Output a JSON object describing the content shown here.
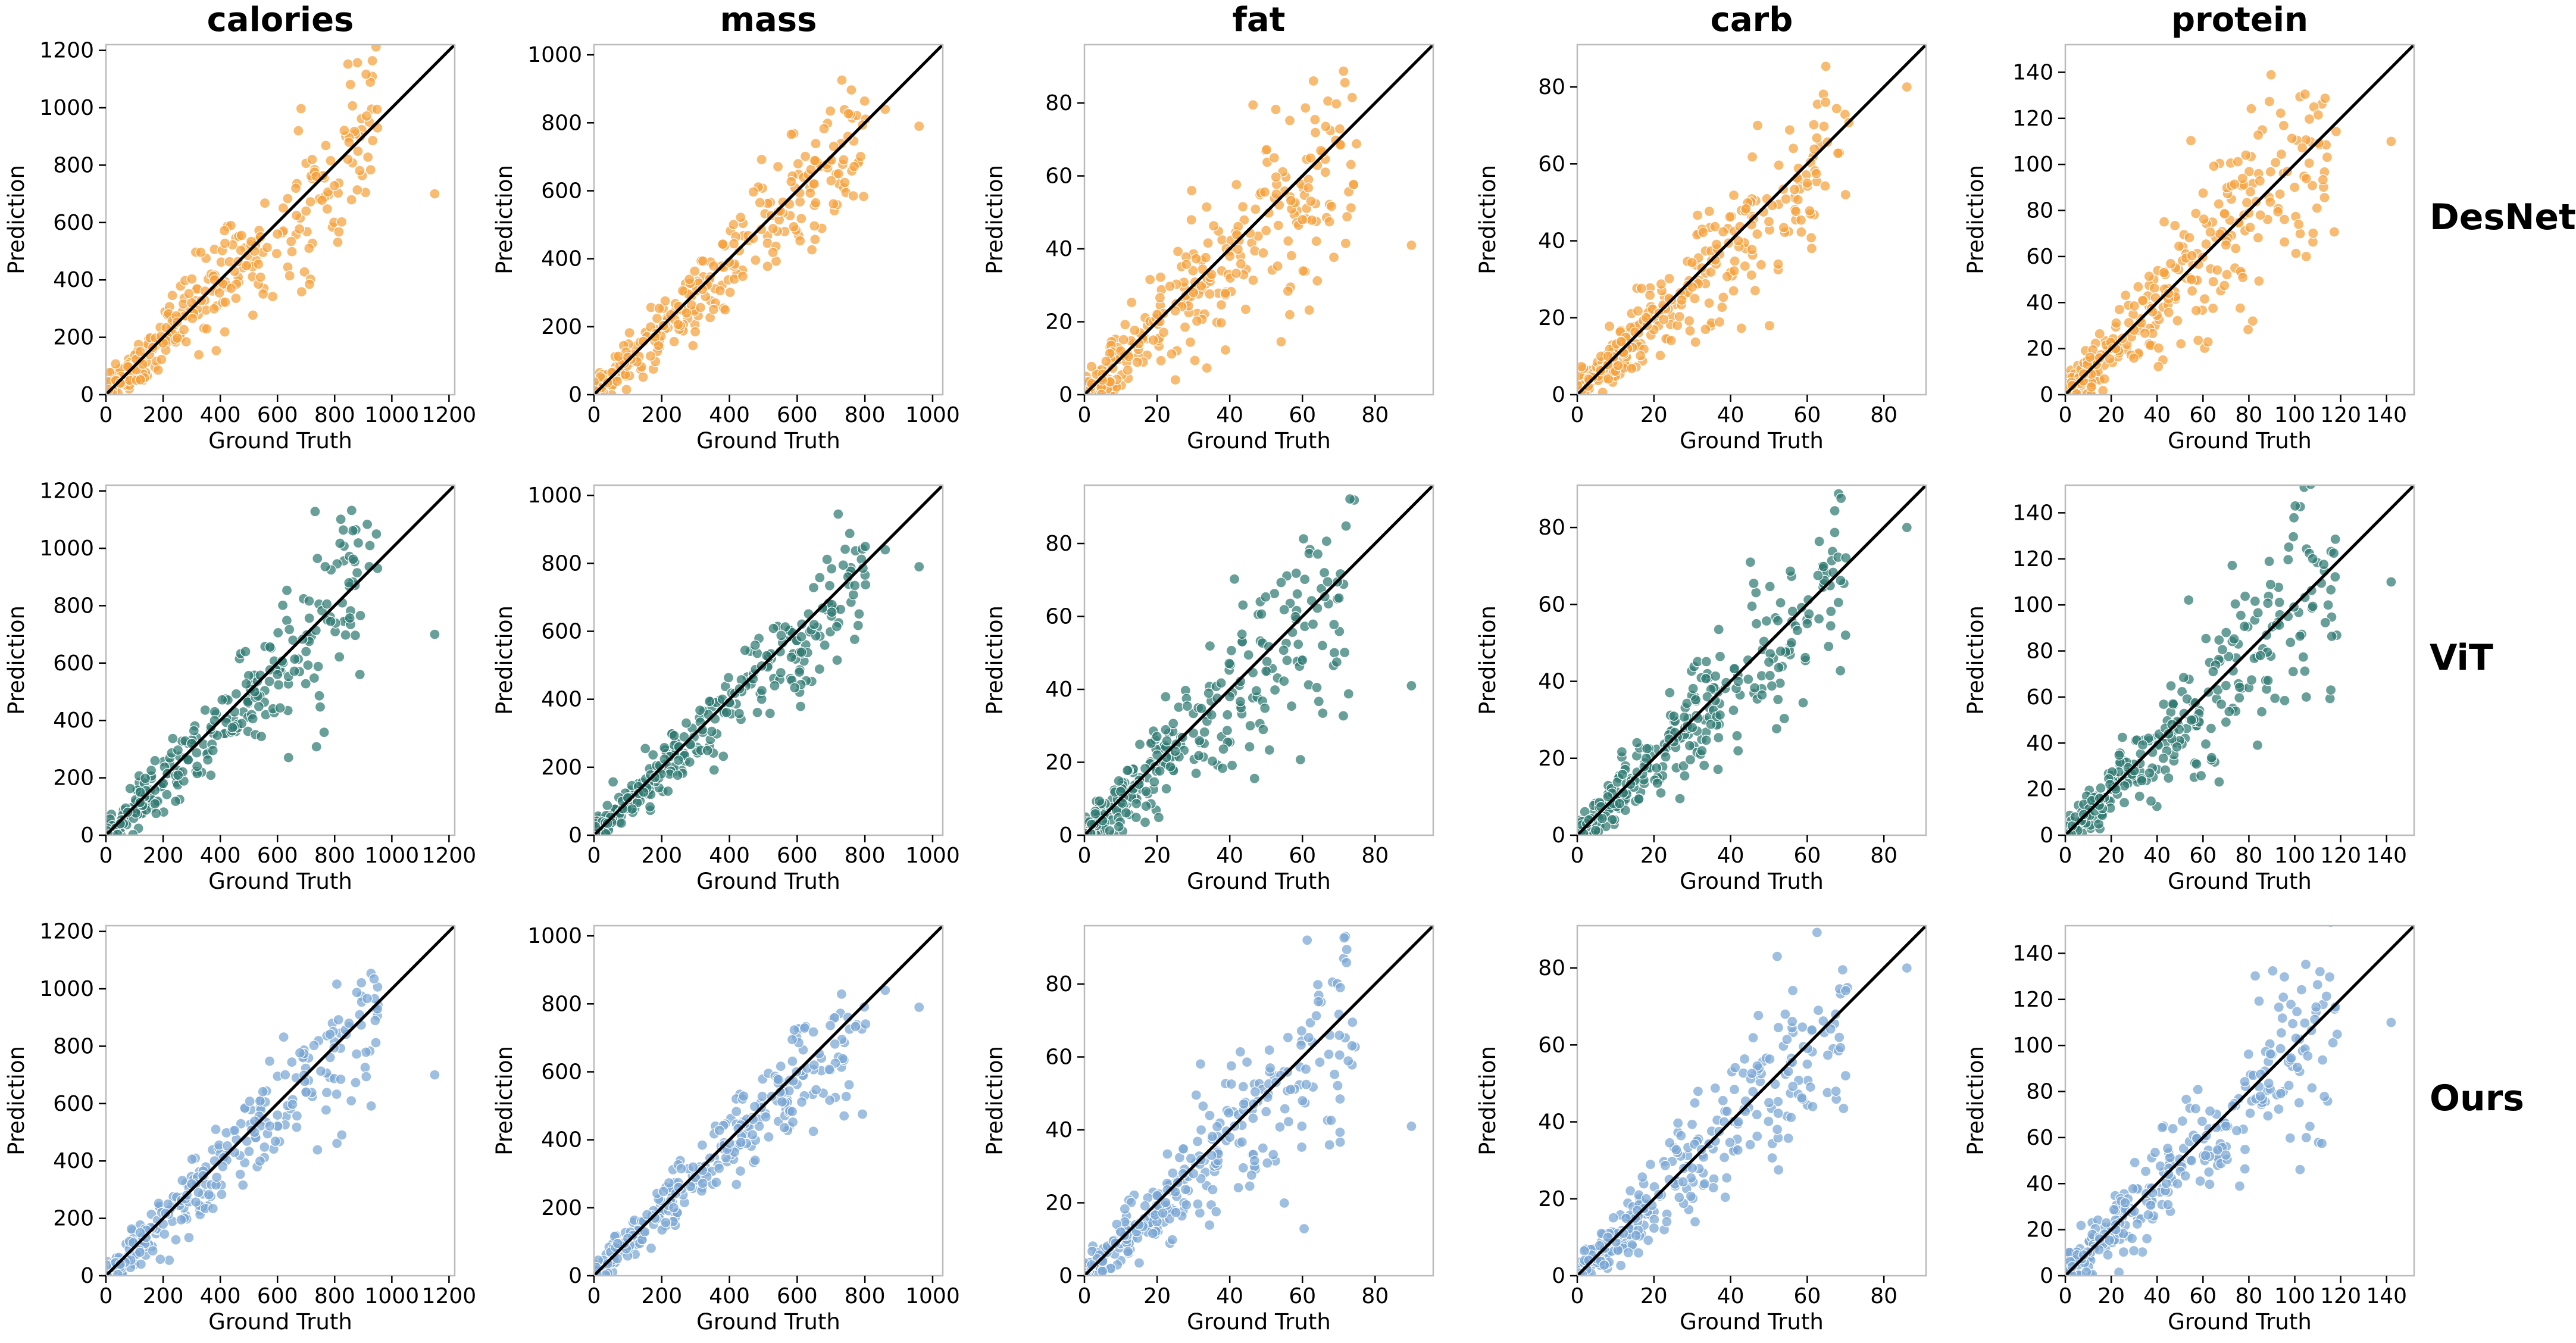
{
  "figure": {
    "columns": [
      "calories",
      "mass",
      "fat",
      "carb",
      "protein"
    ],
    "rows": [
      "DesNet",
      "ViT",
      "Ours"
    ]
  },
  "colors": {
    "DesNet": "#f5a13c",
    "ViT": "#2f7a72",
    "Ours": "#7aa6d4",
    "diagonal": "#000000",
    "frame": "#bbbbbb"
  },
  "chart_data": [
    {
      "type": "scatter",
      "title": "calories",
      "xlabel": "Ground Truth",
      "ylabel": "Prediction",
      "xlim": [
        0,
        1220
      ],
      "ylim": [
        0,
        1220
      ],
      "xticks": [
        "0",
        "200",
        "400",
        "600",
        "800",
        "1000",
        "1200"
      ],
      "yticks": [
        "0",
        "200",
        "400",
        "600",
        "800",
        "1000",
        "1200"
      ],
      "reference_line": "y = x",
      "sample_points": [
        [
          50,
          40
        ],
        [
          120,
          150
        ],
        [
          200,
          180
        ],
        [
          300,
          320
        ],
        [
          380,
          400
        ],
        [
          450,
          430
        ],
        [
          520,
          500
        ],
        [
          600,
          560
        ],
        [
          700,
          640
        ],
        [
          850,
          880
        ],
        [
          950,
          930
        ],
        [
          1150,
          700
        ]
      ],
      "series": [
        {
          "name": "DesNet",
          "spread": 0.16
        },
        {
          "name": "ViT",
          "spread": 0.15
        },
        {
          "name": "Ours",
          "spread": 0.14
        }
      ]
    },
    {
      "type": "scatter",
      "title": "mass",
      "xlabel": "Ground Truth",
      "ylabel": "Prediction",
      "xlim": [
        0,
        1030
      ],
      "ylim": [
        0,
        1030
      ],
      "xticks": [
        "0",
        "200",
        "400",
        "600",
        "800",
        "1000"
      ],
      "yticks": [
        "0",
        "200",
        "400",
        "600",
        "800",
        "1000"
      ],
      "reference_line": "y = x",
      "sample_points": [
        [
          40,
          35
        ],
        [
          100,
          110
        ],
        [
          180,
          170
        ],
        [
          250,
          260
        ],
        [
          320,
          310
        ],
        [
          400,
          390
        ],
        [
          470,
          460
        ],
        [
          550,
          540
        ],
        [
          650,
          620
        ],
        [
          750,
          760
        ],
        [
          860,
          840
        ],
        [
          960,
          790
        ]
      ],
      "series": [
        {
          "name": "DesNet",
          "spread": 0.11
        },
        {
          "name": "ViT",
          "spread": 0.1
        },
        {
          "name": "Ours",
          "spread": 0.09
        }
      ]
    },
    {
      "type": "scatter",
      "title": "fat",
      "xlabel": "Ground Truth",
      "ylabel": "Prediction",
      "xlim": [
        0,
        96
      ],
      "ylim": [
        0,
        96
      ],
      "xticks": [
        "0",
        "20",
        "40",
        "60",
        "80"
      ],
      "yticks": [
        "0",
        "20",
        "40",
        "60",
        "80"
      ],
      "reference_line": "y = x",
      "sample_points": [
        [
          2,
          3
        ],
        [
          5,
          4
        ],
        [
          10,
          12
        ],
        [
          15,
          14
        ],
        [
          20,
          22
        ],
        [
          25,
          23
        ],
        [
          30,
          28
        ],
        [
          35,
          33
        ],
        [
          40,
          38
        ],
        [
          50,
          45
        ],
        [
          60,
          48
        ],
        [
          90,
          41
        ]
      ],
      "series": [
        {
          "name": "DesNet",
          "spread": 0.24
        },
        {
          "name": "ViT",
          "spread": 0.22
        },
        {
          "name": "Ours",
          "spread": 0.2
        }
      ]
    },
    {
      "type": "scatter",
      "title": "carb",
      "xlabel": "Ground Truth",
      "ylabel": "Prediction",
      "xlim": [
        0,
        91
      ],
      "ylim": [
        0,
        91
      ],
      "xticks": [
        "0",
        "20",
        "40",
        "60",
        "80"
      ],
      "yticks": [
        "0",
        "20",
        "40",
        "60",
        "80"
      ],
      "reference_line": "y = x",
      "sample_points": [
        [
          3,
          4
        ],
        [
          8,
          10
        ],
        [
          12,
          11
        ],
        [
          18,
          20
        ],
        [
          24,
          25
        ],
        [
          30,
          28
        ],
        [
          36,
          35
        ],
        [
          42,
          40
        ],
        [
          50,
          45
        ],
        [
          60,
          55
        ],
        [
          70,
          52
        ],
        [
          86,
          80
        ]
      ],
      "series": [
        {
          "name": "DesNet",
          "spread": 0.2
        },
        {
          "name": "ViT",
          "spread": 0.18
        },
        {
          "name": "Ours",
          "spread": 0.17
        }
      ]
    },
    {
      "type": "scatter",
      "title": "protein",
      "xlabel": "Ground Truth",
      "ylabel": "Prediction",
      "xlim": [
        0,
        152
      ],
      "ylim": [
        0,
        152
      ],
      "xticks": [
        "0",
        "20",
        "40",
        "60",
        "80",
        "100",
        "120",
        "140"
      ],
      "yticks": [
        "0",
        "20",
        "40",
        "60",
        "80",
        "100",
        "120",
        "140"
      ],
      "reference_line": "y = x",
      "sample_points": [
        [
          3,
          4
        ],
        [
          8,
          9
        ],
        [
          15,
          16
        ],
        [
          22,
          20
        ],
        [
          30,
          28
        ],
        [
          38,
          36
        ],
        [
          45,
          44
        ],
        [
          55,
          50
        ],
        [
          70,
          65
        ],
        [
          85,
          78
        ],
        [
          105,
          60
        ],
        [
          142,
          110
        ]
      ],
      "series": [
        {
          "name": "DesNet",
          "spread": 0.22
        },
        {
          "name": "ViT",
          "spread": 0.2
        },
        {
          "name": "Ours",
          "spread": 0.19
        }
      ]
    }
  ]
}
